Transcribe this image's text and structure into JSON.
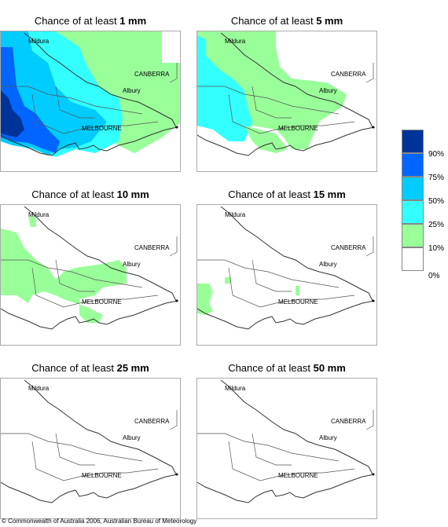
{
  "panels": [
    {
      "title_prefix": "Chance of at least ",
      "amount": "1 mm"
    },
    {
      "title_prefix": "Chance of at least ",
      "amount": "5 mm"
    },
    {
      "title_prefix": "Chance of at least ",
      "amount": "10 mm"
    },
    {
      "title_prefix": "Chance of at least ",
      "amount": "15 mm"
    },
    {
      "title_prefix": "Chance of at least ",
      "amount": "25 mm"
    },
    {
      "title_prefix": "Chance of at least ",
      "amount": "50 mm"
    }
  ],
  "places": {
    "mildura": "Mildura",
    "canberra": "CANBERRA",
    "albury": "Albury",
    "melbourne": "MELBOURNE"
  },
  "legend": {
    "labels": [
      "90%",
      "75%",
      "50%",
      "25%",
      "10%",
      "0%"
    ],
    "colors": [
      "#003399",
      "#0066ff",
      "#00ccff",
      "#33ffff",
      "#99ff99",
      "#ffffff"
    ]
  },
  "copyright": "© Commonwealth of Australia 2006, Australian Bureau of Meteorology"
}
